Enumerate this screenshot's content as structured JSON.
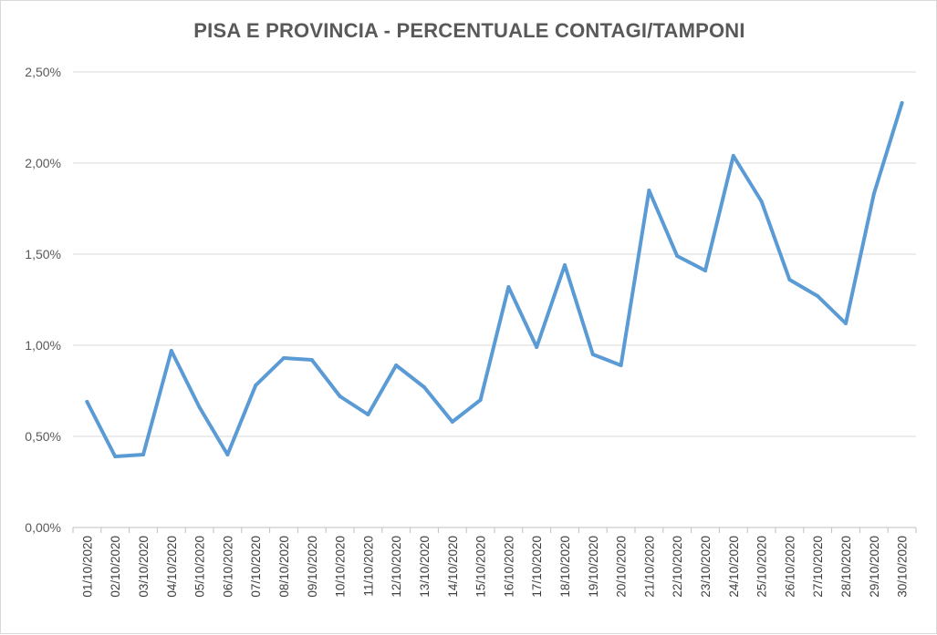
{
  "chart_data": {
    "type": "line",
    "title": "PISA E PROVINCIA - PERCENTUALE CONTAGI/TAMPONI",
    "xlabel": "",
    "ylabel": "",
    "ylim": [
      0,
      2.5
    ],
    "yticks": [
      "0,00%",
      "0,50%",
      "1,00%",
      "1,50%",
      "2,00%",
      "2,50%"
    ],
    "grid": "horizontal",
    "legend": "none",
    "line_color": "#5b9bd5",
    "categories": [
      "01/10/2020",
      "02/10/2020",
      "03/10/2020",
      "04/10/2020",
      "05/10/2020",
      "06/10/2020",
      "07/10/2020",
      "08/10/2020",
      "09/10/2020",
      "10/10/2020",
      "11/10/2020",
      "12/10/2020",
      "13/10/2020",
      "14/10/2020",
      "15/10/2020",
      "16/10/2020",
      "17/10/2020",
      "18/10/2020",
      "19/10/2020",
      "20/10/2020",
      "21/10/2020",
      "22/10/2020",
      "23/10/2020",
      "24/10/2020",
      "25/10/2020",
      "26/10/2020",
      "27/10/2020",
      "28/10/2020",
      "29/10/2020",
      "30/10/2020"
    ],
    "series": [
      {
        "values": [
          0.69,
          0.39,
          0.4,
          0.97,
          0.66,
          0.4,
          0.78,
          0.93,
          0.92,
          0.72,
          0.62,
          0.89,
          0.77,
          0.58,
          0.7,
          1.32,
          0.99,
          1.44,
          0.95,
          0.89,
          1.85,
          1.49,
          1.41,
          2.04,
          1.79,
          1.36,
          1.27,
          1.12,
          1.83,
          2.33
        ]
      }
    ]
  }
}
